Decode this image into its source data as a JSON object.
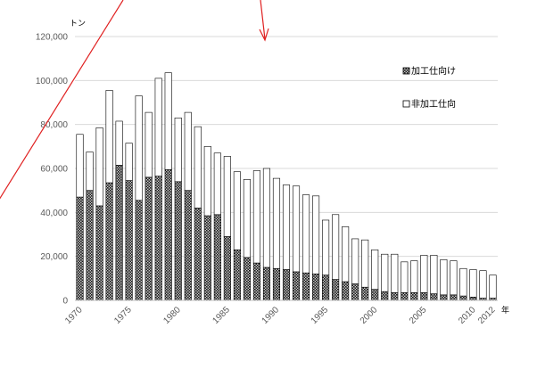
{
  "chart_data": {
    "type": "bar",
    "stacked": true,
    "y_unit": "トン",
    "x_unit": "年",
    "ylim": [
      0,
      120000
    ],
    "yticks": [
      0,
      20000,
      40000,
      60000,
      80000,
      100000,
      120000
    ],
    "ytick_labels": [
      "0",
      "20,000",
      "40,000",
      "60,000",
      "80,000",
      "100,000",
      "120,000"
    ],
    "xtick_labels": [
      "1970",
      "1975",
      "1980",
      "1985",
      "1990",
      "1995",
      "2000",
      "2005",
      "2010",
      "2012"
    ],
    "grid": true,
    "legend_position": "right",
    "categories": [
      1970,
      1971,
      1972,
      1973,
      1974,
      1975,
      1976,
      1977,
      1978,
      1979,
      1980,
      1981,
      1982,
      1983,
      1984,
      1985,
      1986,
      1987,
      1988,
      1989,
      1990,
      1991,
      1992,
      1993,
      1994,
      1995,
      1996,
      1997,
      1998,
      1999,
      2000,
      2001,
      2002,
      2003,
      2004,
      2005,
      2006,
      2007,
      2008,
      2009,
      2010,
      2011,
      2012
    ],
    "series": [
      {
        "name": "加工仕向け",
        "pattern": "hatched",
        "values": [
          47000,
          50000,
          43000,
          53500,
          61500,
          54500,
          45500,
          56000,
          56500,
          59500,
          54000,
          50000,
          42000,
          38500,
          39000,
          29000,
          23000,
          19500,
          17000,
          15000,
          14500,
          14000,
          13000,
          12500,
          12000,
          11500,
          9500,
          8500,
          7500,
          6000,
          5000,
          4000,
          3500,
          3500,
          3500,
          3500,
          3000,
          2500,
          2500,
          2000,
          1500,
          1000,
          1000
        ]
      },
      {
        "name": "非加工仕向",
        "pattern": "white",
        "values": [
          28500,
          17500,
          35500,
          42000,
          20000,
          17000,
          47500,
          29500,
          44500,
          44000,
          29000,
          35500,
          37000,
          31500,
          28000,
          36500,
          35500,
          35500,
          42000,
          45000,
          41000,
          38500,
          39000,
          35500,
          35500,
          25000,
          29500,
          25000,
          20500,
          21500,
          18000,
          17000,
          17500,
          14000,
          14500,
          17000,
          17500,
          16000,
          15500,
          12500,
          12500,
          12500,
          10500
        ]
      }
    ]
  },
  "colors": {
    "series_fill_1": "#262626",
    "series_fill_2": "#ffffff",
    "bar_stroke": "#000000",
    "grid": "#d9d9d9",
    "annotation": "#e02020"
  }
}
